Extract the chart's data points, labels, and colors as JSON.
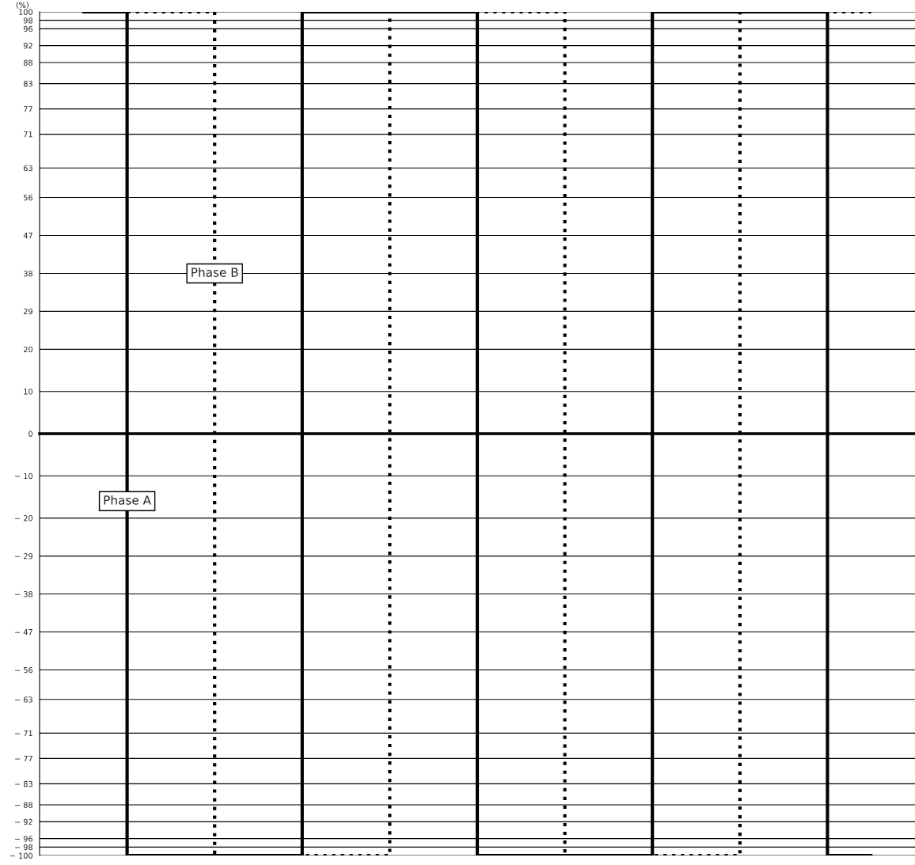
{
  "chart_data": {
    "type": "step",
    "ylabel": "(%)",
    "categories": [
      null,
      null,
      null,
      null,
      null,
      null,
      null,
      null,
      null,
      null
    ],
    "series": [
      {
        "name": "Phase A",
        "color": "#000000",
        "line_style": "solid",
        "values": [
          100,
          -100,
          -100,
          100,
          100,
          -100,
          -100,
          100,
          100,
          -100
        ]
      },
      {
        "name": "Phase B",
        "color": "#000000",
        "line_style": "dotted",
        "values": [
          100,
          100,
          -100,
          -100,
          100,
          100,
          -100,
          -100,
          100,
          100
        ]
      }
    ],
    "ylim": [
      -100,
      100
    ],
    "yticks": [
      {
        "value": -100,
        "label": "− 100"
      },
      {
        "value": -98,
        "label": "− 98"
      },
      {
        "value": -96,
        "label": "− 96"
      },
      {
        "value": -92,
        "label": "− 92"
      },
      {
        "value": -88,
        "label": "− 88"
      },
      {
        "value": -83,
        "label": "− 83"
      },
      {
        "value": -77,
        "label": "− 77"
      },
      {
        "value": -71,
        "label": "− 71"
      },
      {
        "value": -63,
        "label": "− 63"
      },
      {
        "value": -56,
        "label": "− 56"
      },
      {
        "value": -47,
        "label": "− 47"
      },
      {
        "value": -38,
        "label": "− 38"
      },
      {
        "value": -29,
        "label": "− 29"
      },
      {
        "value": -20,
        "label": "− 20"
      },
      {
        "value": -10,
        "label": "− 10"
      },
      0,
      10,
      20,
      29,
      38,
      47,
      56,
      63,
      71,
      77,
      83,
      88,
      92,
      96,
      98,
      100
    ],
    "grid": "y",
    "tick_labels": "y",
    "legend": false
  }
}
